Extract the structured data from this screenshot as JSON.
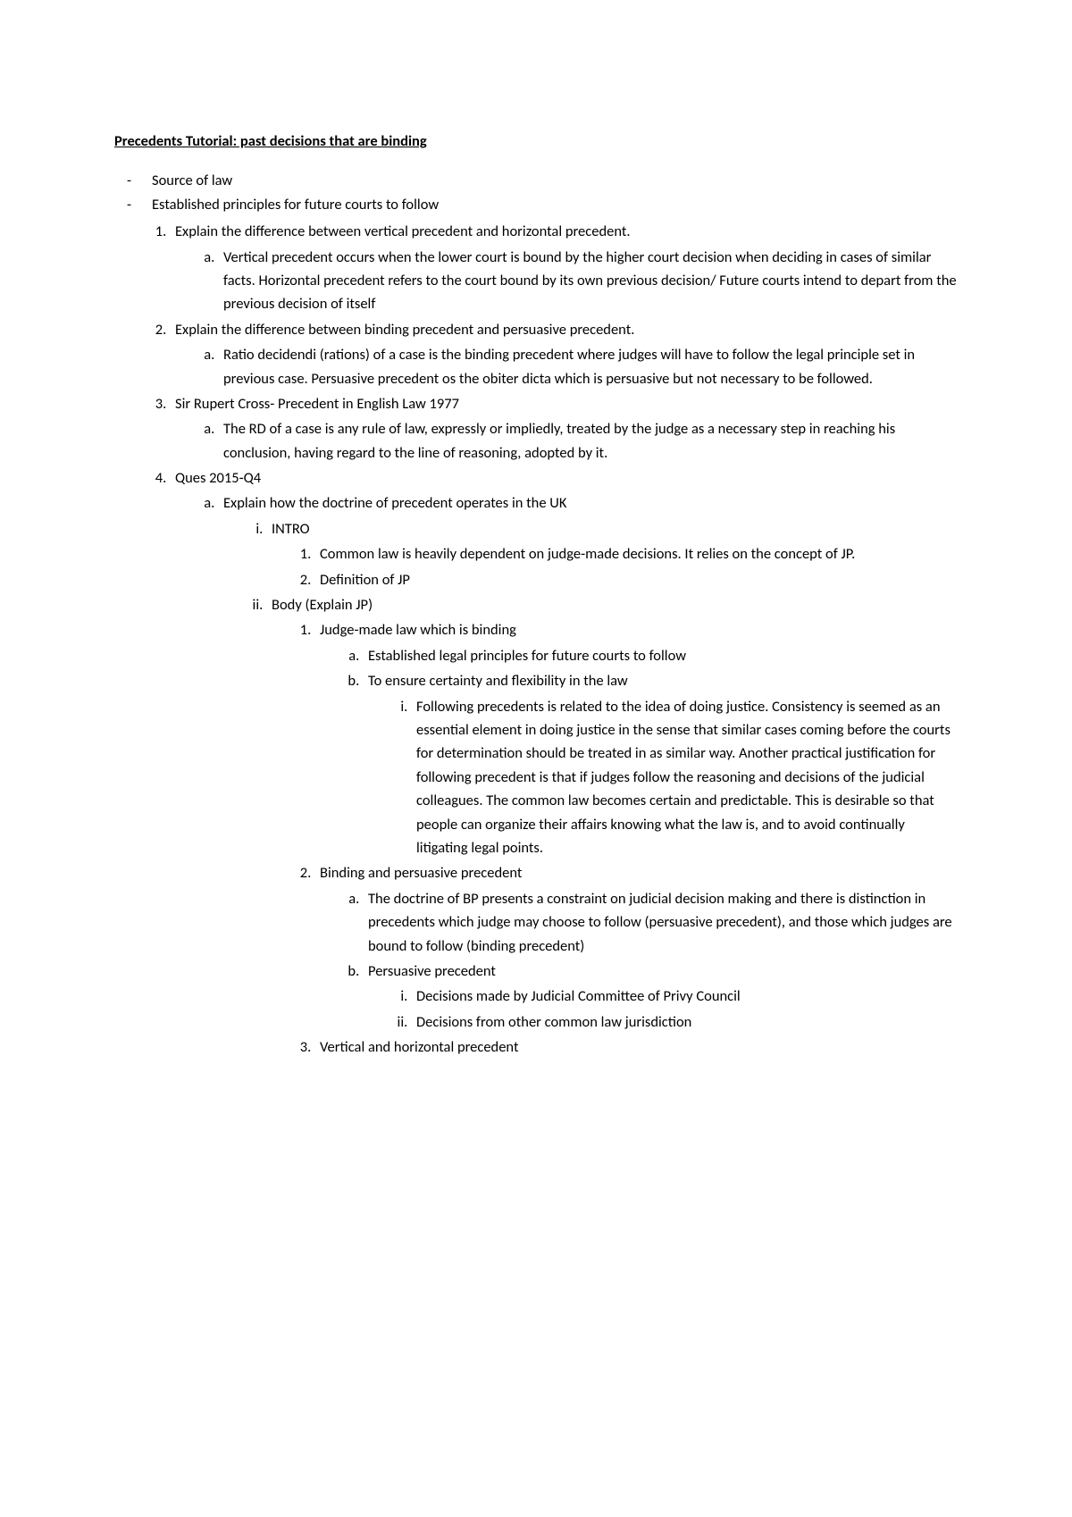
{
  "title": "Precedents Tutorial: past decisions that are binding",
  "dash1": "Source of law",
  "dash2": "Established principles for future courts to follow",
  "n1": "Explain the difference between vertical precedent and horizontal precedent.",
  "n1a": "Vertical precedent occurs when the lower court is bound by the higher court decision when deciding in cases of similar facts. Horizontal precedent refers to the court bound by its own previous decision/ Future courts intend to depart from the previous decision of itself",
  "n2": "Explain the difference between binding precedent and persuasive precedent.",
  "n2a": "Ratio decidendi (rations) of a case is the binding precedent where judges will have to follow the legal principle set in previous case. Persuasive precedent os the obiter dicta which is persuasive but not necessary to be followed.",
  "n3": "Sir Rupert Cross- Precedent in English Law 1977",
  "n3a": "The RD of a case is any rule of law, expressly or impliedly, treated by the judge as a necessary step in reaching his conclusion, having regard to the line of reasoning, adopted by it.",
  "n4": "Ques 2015-Q4",
  "n4a": "Explain how the doctrine of precedent operates in the UK",
  "n4a_i": "INTRO",
  "n4a_i_1": "Common law is heavily dependent on judge-made decisions. It relies on the concept of JP.",
  "n4a_i_2": "Definition of JP",
  "n4a_ii": "Body (Explain JP)",
  "n4a_ii_1": "Judge-made law which is binding",
  "n4a_ii_1a": "Established legal principles for future courts to follow",
  "n4a_ii_1b": "To ensure certainty and flexibility in the law",
  "n4a_ii_1b_i": "Following precedents is related to the idea of doing justice. Consistency is seemed as an essential element in doing justice in the sense that similar cases coming before the courts for determination should be treated in as similar way. Another practical justification for following precedent is that if judges follow the reasoning and decisions of the judicial colleagues. The common law becomes certain and predictable. This is desirable so that people can organize their affairs knowing what the law is, and to avoid continually litigating legal points.",
  "n4a_ii_2": "Binding and persuasive precedent",
  "n4a_ii_2a": "The doctrine of BP presents a constraint on judicial decision making and there is distinction in precedents which judge may choose to follow (persuasive precedent), and those which judges are bound to follow (binding precedent)",
  "n4a_ii_2b": "Persuasive precedent",
  "n4a_ii_2b_i": "Decisions made by Judicial Committee of Privy Council",
  "n4a_ii_2b_ii": "Decisions from other common law jurisdiction",
  "n4a_ii_3": "Vertical and horizontal precedent"
}
